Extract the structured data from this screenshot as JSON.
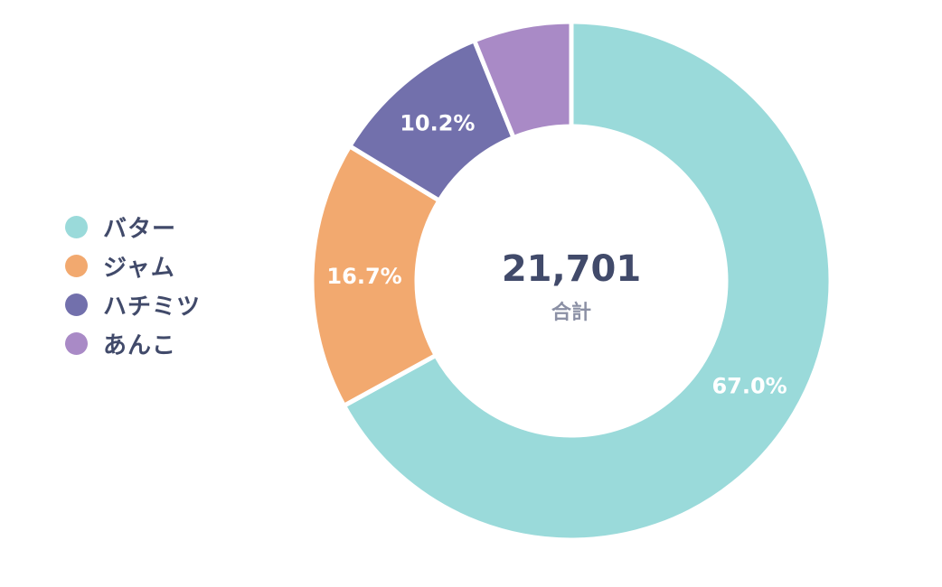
{
  "chart_data": {
    "type": "pie",
    "donut": true,
    "categories": [
      "バター",
      "ジャム",
      "ハチミツ",
      "あんこ"
    ],
    "values": [
      67.0,
      16.7,
      10.2,
      6.1
    ],
    "data_labels": [
      "67.0%",
      "16.7%",
      "10.2%",
      ""
    ],
    "colors": [
      "#9adada",
      "#f2a96f",
      "#7270ac",
      "#a98ac6"
    ],
    "center_total": "21,701",
    "center_caption": "合計",
    "legend_position": "left",
    "start_angle": "12 o'clock",
    "direction": "clockwise"
  }
}
